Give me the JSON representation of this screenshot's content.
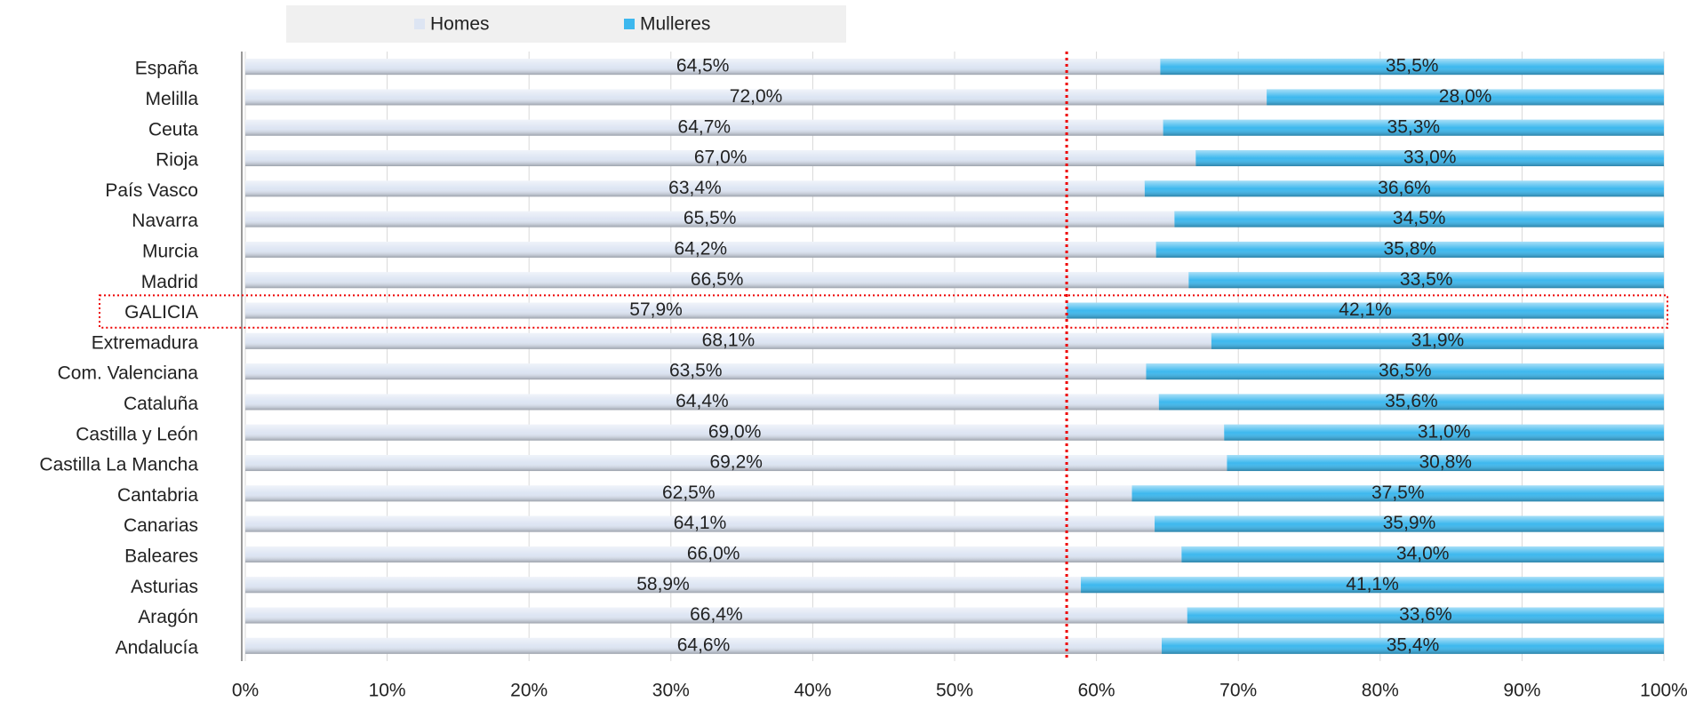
{
  "chart_data": {
    "type": "stacked_bar_horizontal",
    "categories": [
      "España",
      "Melilla",
      "Ceuta",
      "Rioja",
      "País Vasco",
      "Navarra",
      "Murcia",
      "Madrid",
      "GALICIA",
      "Extremadura",
      "Com. Valenciana",
      "Cataluña",
      "Castilla y León",
      "Castilla La Mancha",
      "Cantabria",
      "Canarias",
      "Baleares",
      "Asturias",
      "Aragón",
      "Andalucía"
    ],
    "series": [
      {
        "name": "Homes",
        "color": "#dde5f3",
        "values": [
          64.5,
          72.0,
          64.7,
          67.0,
          63.4,
          65.5,
          64.2,
          66.5,
          57.9,
          68.1,
          63.5,
          64.4,
          69.0,
          69.2,
          62.5,
          64.1,
          66.0,
          58.9,
          66.4,
          64.6
        ],
        "value_labels": [
          "64,5%",
          "72,0%",
          "64,7%",
          "67,0%",
          "63,4%",
          "65,5%",
          "64,2%",
          "66,5%",
          "57,9%",
          "68,1%",
          "63,5%",
          "64,4%",
          "69,0%",
          "69,2%",
          "62,5%",
          "64,1%",
          "66,0%",
          "58,9%",
          "66,4%",
          "64,6%"
        ]
      },
      {
        "name": "Mulleres",
        "color": "#3db8ee",
        "values": [
          35.5,
          28.0,
          35.3,
          33.0,
          36.6,
          34.5,
          35.8,
          33.5,
          42.1,
          31.9,
          36.5,
          35.6,
          31.0,
          30.8,
          37.5,
          35.9,
          34.0,
          41.1,
          33.6,
          35.4
        ],
        "value_labels": [
          "35,5%",
          "28,0%",
          "35,3%",
          "33,0%",
          "36,6%",
          "34,5%",
          "35,8%",
          "33,5%",
          "42,1%",
          "31,9%",
          "36,5%",
          "35,6%",
          "31,0%",
          "30,8%",
          "37,5%",
          "35,9%",
          "34,0%",
          "41,1%",
          "33,6%",
          "35,4%"
        ]
      }
    ],
    "xlim": [
      0,
      100
    ],
    "xticks": [
      {
        "value": 0,
        "label": "0%"
      },
      {
        "value": 10,
        "label": "10%"
      },
      {
        "value": 20,
        "label": "20%"
      },
      {
        "value": 30,
        "label": "30%"
      },
      {
        "value": 40,
        "label": "40%"
      },
      {
        "value": 50,
        "label": "50%"
      },
      {
        "value": 60,
        "label": "60%"
      },
      {
        "value": 70,
        "label": "70%"
      },
      {
        "value": 80,
        "label": "80%"
      },
      {
        "value": 90,
        "label": "90%"
      },
      {
        "value": 100,
        "label": "100%"
      }
    ],
    "grid": true,
    "legend": "top"
  }
}
